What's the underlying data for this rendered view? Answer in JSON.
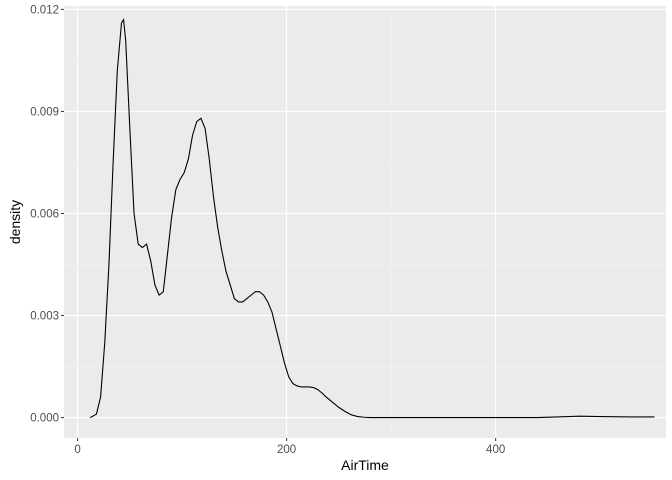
{
  "chart_data": {
    "type": "area",
    "title": "",
    "xlabel": "AirTime",
    "ylabel": "density",
    "xlim": [
      -13,
      563
    ],
    "ylim": [
      -0.0006,
      0.0121
    ],
    "x_ticks": [
      0,
      200,
      400
    ],
    "x_tick_labels": [
      "0",
      "200",
      "400"
    ],
    "y_ticks": [
      0,
      0.003,
      0.006,
      0.009,
      0.012
    ],
    "y_tick_labels": [
      "0.000",
      "0.003",
      "0.006",
      "0.009",
      "0.012"
    ],
    "grid": true,
    "legend": "none",
    "colors": {
      "panel": "#ebebeb",
      "grid_major": "#ffffff",
      "grid_minor": "#f5f5f5",
      "line": "#000000",
      "tick_label": "#4d4d4d",
      "axis_title": "#000000"
    },
    "series": [
      {
        "x": [
          12,
          18,
          22,
          26,
          30,
          34,
          38,
          42,
          44,
          46,
          50,
          54,
          58,
          62,
          66,
          70,
          74,
          78,
          82,
          86,
          90,
          94,
          98,
          102,
          106,
          110,
          114,
          118,
          122,
          126,
          130,
          134,
          138,
          142,
          146,
          150,
          154,
          158,
          162,
          166,
          170,
          174,
          178,
          182,
          186,
          190,
          194,
          198,
          202,
          206,
          210,
          214,
          218,
          222,
          226,
          230,
          234,
          238,
          244,
          250,
          256,
          262,
          268,
          274,
          280,
          290,
          300,
          320,
          340,
          360,
          400,
          440,
          470,
          480,
          500,
          530,
          552
        ],
        "y": [
          0.0,
          0.0001,
          0.0006,
          0.0022,
          0.0045,
          0.0075,
          0.0102,
          0.0116,
          0.0117,
          0.0111,
          0.0085,
          0.006,
          0.0051,
          0.005,
          0.0051,
          0.0046,
          0.0039,
          0.0036,
          0.0037,
          0.0048,
          0.0059,
          0.0067,
          0.007,
          0.0072,
          0.0076,
          0.0083,
          0.0087,
          0.0088,
          0.0085,
          0.0076,
          0.0065,
          0.0056,
          0.0049,
          0.0043,
          0.0039,
          0.0035,
          0.0034,
          0.0034,
          0.0035,
          0.0036,
          0.0037,
          0.0037,
          0.0036,
          0.0034,
          0.0031,
          0.0026,
          0.0021,
          0.0016,
          0.0012,
          0.001,
          0.00093,
          0.0009,
          0.0009,
          0.0009,
          0.00088,
          0.00082,
          0.00072,
          0.0006,
          0.00045,
          0.0003,
          0.00018,
          8e-05,
          3e-05,
          1e-05,
          0.0,
          0.0,
          0.0,
          0.0,
          0.0,
          0.0,
          0.0,
          0.0,
          3e-05,
          4e-05,
          3e-05,
          2e-05,
          2e-05
        ]
      }
    ]
  }
}
